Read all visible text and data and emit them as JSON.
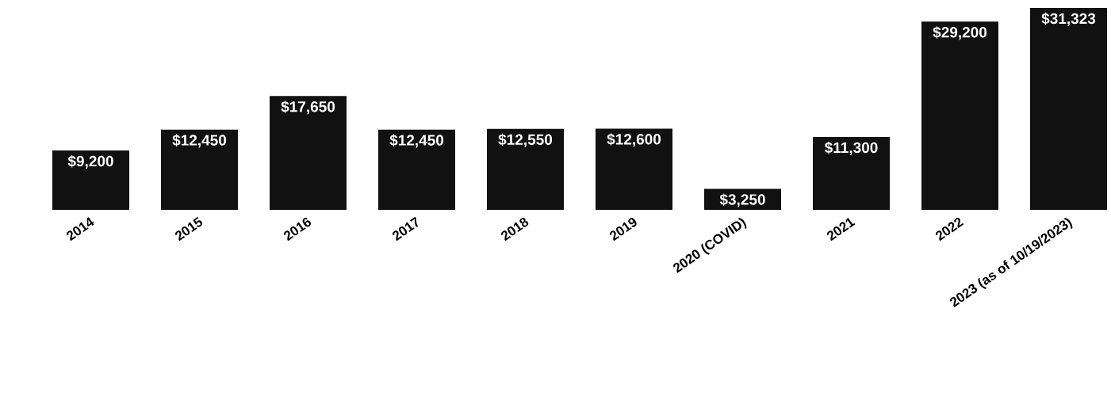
{
  "chart_data": {
    "type": "bar",
    "categories": [
      "2014",
      "2015",
      "2016",
      "2017",
      "2018",
      "2019",
      "2020 (COVID)",
      "2021",
      "2022",
      "2023 (as of 10/19/2023)"
    ],
    "values": [
      9200,
      12450,
      17650,
      12450,
      12550,
      12600,
      3250,
      11300,
      29200,
      31323
    ],
    "value_labels": [
      "$9,200",
      "$12,450",
      "$17,650",
      "$12,450",
      "$12,550",
      "$12,600",
      "$3,250",
      "$11,300",
      "$29,200",
      "$31,323"
    ],
    "color": "#111111"
  }
}
